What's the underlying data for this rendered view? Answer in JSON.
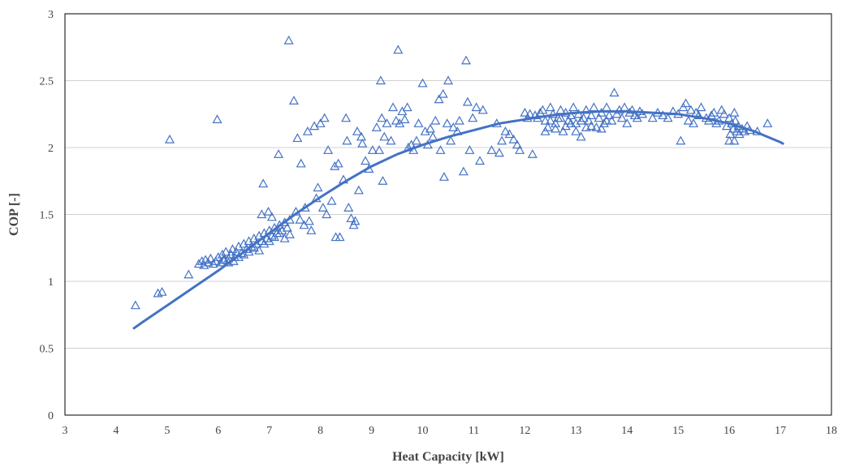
{
  "chart_data": {
    "type": "scatter",
    "title": "",
    "xlabel": "Heat Capacity [kW]",
    "ylabel": "COP [-]",
    "xlim": [
      3,
      18
    ],
    "ylim": [
      0,
      3
    ],
    "xticks": [
      3,
      4,
      5,
      6,
      7,
      8,
      9,
      10,
      11,
      12,
      13,
      14,
      15,
      16,
      17,
      18
    ],
    "yticks": [
      0,
      0.5,
      1,
      1.5,
      2,
      2.5,
      3
    ],
    "grid": "horizontal",
    "legend": "none",
    "marker": "triangle-open",
    "color": "#4472c4",
    "series": [
      {
        "points": [
          [
            4.38,
            0.82
          ],
          [
            4.82,
            0.91
          ],
          [
            4.9,
            0.92
          ],
          [
            5.05,
            2.06
          ],
          [
            5.42,
            1.05
          ],
          [
            5.98,
            2.21
          ],
          [
            5.62,
            1.13
          ],
          [
            5.68,
            1.15
          ],
          [
            5.72,
            1.12
          ],
          [
            5.75,
            1.16
          ],
          [
            5.8,
            1.14
          ],
          [
            5.85,
            1.17
          ],
          [
            5.9,
            1.13
          ],
          [
            5.95,
            1.15
          ],
          [
            6.0,
            1.18
          ],
          [
            6.05,
            1.14
          ],
          [
            6.08,
            1.2
          ],
          [
            6.12,
            1.16
          ],
          [
            6.15,
            1.22
          ],
          [
            6.2,
            1.17
          ],
          [
            6.25,
            1.2
          ],
          [
            6.28,
            1.24
          ],
          [
            6.32,
            1.18
          ],
          [
            6.35,
            1.22
          ],
          [
            6.4,
            1.26
          ],
          [
            6.45,
            1.21
          ],
          [
            6.5,
            1.28
          ],
          [
            6.55,
            1.24
          ],
          [
            6.6,
            1.3
          ],
          [
            6.65,
            1.26
          ],
          [
            6.7,
            1.32
          ],
          [
            6.75,
            1.28
          ],
          [
            6.8,
            1.34
          ],
          [
            6.85,
            1.3
          ],
          [
            6.9,
            1.36
          ],
          [
            6.95,
            1.32
          ],
          [
            7.0,
            1.38
          ],
          [
            7.05,
            1.34
          ],
          [
            7.1,
            1.4
          ],
          [
            7.15,
            1.36
          ],
          [
            7.2,
            1.42
          ],
          [
            7.25,
            1.38
          ],
          [
            7.3,
            1.44
          ],
          [
            7.35,
            1.4
          ],
          [
            7.4,
            1.46
          ],
          [
            6.6,
            1.22
          ],
          [
            6.7,
            1.25
          ],
          [
            6.8,
            1.23
          ],
          [
            6.9,
            1.28
          ],
          [
            7.0,
            1.3
          ],
          [
            7.1,
            1.33
          ],
          [
            7.2,
            1.36
          ],
          [
            7.3,
            1.32
          ],
          [
            7.4,
            1.35
          ],
          [
            6.3,
            1.15
          ],
          [
            6.4,
            1.18
          ],
          [
            6.5,
            1.2
          ],
          [
            6.2,
            1.14
          ],
          [
            6.1,
            1.16
          ],
          [
            6.88,
            1.73
          ],
          [
            6.85,
            1.5
          ],
          [
            6.98,
            1.52
          ],
          [
            7.05,
            1.48
          ],
          [
            7.18,
            1.95
          ],
          [
            7.38,
            2.8
          ],
          [
            7.48,
            2.35
          ],
          [
            7.52,
            1.52
          ],
          [
            7.55,
            2.07
          ],
          [
            7.6,
            1.46
          ],
          [
            7.62,
            1.88
          ],
          [
            7.68,
            1.42
          ],
          [
            7.7,
            1.55
          ],
          [
            7.75,
            2.12
          ],
          [
            7.78,
            1.45
          ],
          [
            7.82,
            1.38
          ],
          [
            7.88,
            2.16
          ],
          [
            7.92,
            1.62
          ],
          [
            7.95,
            1.7
          ],
          [
            8.0,
            2.18
          ],
          [
            8.05,
            1.55
          ],
          [
            8.08,
            2.22
          ],
          [
            8.12,
            1.5
          ],
          [
            8.15,
            1.98
          ],
          [
            8.22,
            1.6
          ],
          [
            8.28,
            1.86
          ],
          [
            8.3,
            1.33
          ],
          [
            8.35,
            1.88
          ],
          [
            8.38,
            1.33
          ],
          [
            8.45,
            1.76
          ],
          [
            8.5,
            2.22
          ],
          [
            8.52,
            2.05
          ],
          [
            8.55,
            1.55
          ],
          [
            8.6,
            1.47
          ],
          [
            8.65,
            1.42
          ],
          [
            8.68,
            1.45
          ],
          [
            8.72,
            2.12
          ],
          [
            8.75,
            1.68
          ],
          [
            8.8,
            2.08
          ],
          [
            8.82,
            2.03
          ],
          [
            8.88,
            1.9
          ],
          [
            8.95,
            1.84
          ],
          [
            9.02,
            1.98
          ],
          [
            9.1,
            2.15
          ],
          [
            9.15,
            1.98
          ],
          [
            9.18,
            2.5
          ],
          [
            9.2,
            2.22
          ],
          [
            9.22,
            1.75
          ],
          [
            9.25,
            2.08
          ],
          [
            9.3,
            2.18
          ],
          [
            9.38,
            2.05
          ],
          [
            9.42,
            2.3
          ],
          [
            9.48,
            2.2
          ],
          [
            9.52,
            2.73
          ],
          [
            9.55,
            2.18
          ],
          [
            9.6,
            2.27
          ],
          [
            9.65,
            2.21
          ],
          [
            9.7,
            2.3
          ],
          [
            9.72,
            2.0
          ],
          [
            9.78,
            2.02
          ],
          [
            9.82,
            1.98
          ],
          [
            9.88,
            2.05
          ],
          [
            9.92,
            2.18
          ],
          [
            10.0,
            2.48
          ],
          [
            10.05,
            2.12
          ],
          [
            10.1,
            2.02
          ],
          [
            10.15,
            2.14
          ],
          [
            10.2,
            2.08
          ],
          [
            10.25,
            2.2
          ],
          [
            10.32,
            2.36
          ],
          [
            10.35,
            1.98
          ],
          [
            10.4,
            2.4
          ],
          [
            10.42,
            1.78
          ],
          [
            10.48,
            2.18
          ],
          [
            10.5,
            2.5
          ],
          [
            10.55,
            2.05
          ],
          [
            10.6,
            2.15
          ],
          [
            10.68,
            2.12
          ],
          [
            10.72,
            2.2
          ],
          [
            10.8,
            1.82
          ],
          [
            10.85,
            2.65
          ],
          [
            10.88,
            2.34
          ],
          [
            10.92,
            1.98
          ],
          [
            10.98,
            2.22
          ],
          [
            11.05,
            2.3
          ],
          [
            11.12,
            1.9
          ],
          [
            11.18,
            2.28
          ],
          [
            11.35,
            1.98
          ],
          [
            11.45,
            2.18
          ],
          [
            11.5,
            1.96
          ],
          [
            11.55,
            2.05
          ],
          [
            11.62,
            2.12
          ],
          [
            11.7,
            2.1
          ],
          [
            11.78,
            2.06
          ],
          [
            11.85,
            2.02
          ],
          [
            11.9,
            1.98
          ],
          [
            12.0,
            2.26
          ],
          [
            12.05,
            2.22
          ],
          [
            12.1,
            2.25
          ],
          [
            12.15,
            1.95
          ],
          [
            12.2,
            2.24
          ],
          [
            12.25,
            2.22
          ],
          [
            12.3,
            2.26
          ],
          [
            12.35,
            2.28
          ],
          [
            12.4,
            2.2
          ],
          [
            12.45,
            2.15
          ],
          [
            12.5,
            2.3
          ],
          [
            12.55,
            2.25
          ],
          [
            12.6,
            2.18
          ],
          [
            12.65,
            2.22
          ],
          [
            12.7,
            2.28
          ],
          [
            12.75,
            2.12
          ],
          [
            12.8,
            2.26
          ],
          [
            12.85,
            2.2
          ],
          [
            12.9,
            2.24
          ],
          [
            12.95,
            2.3
          ],
          [
            13.0,
            2.18
          ],
          [
            13.05,
            2.25
          ],
          [
            13.1,
            2.08
          ],
          [
            13.15,
            2.22
          ],
          [
            13.2,
            2.28
          ],
          [
            13.25,
            2.2
          ],
          [
            13.3,
            2.24
          ],
          [
            13.35,
            2.3
          ],
          [
            13.4,
            2.15
          ],
          [
            13.45,
            2.22
          ],
          [
            13.5,
            2.26
          ],
          [
            13.55,
            2.18
          ],
          [
            13.6,
            2.3
          ],
          [
            13.65,
            2.24
          ],
          [
            13.7,
            2.2
          ],
          [
            13.75,
            2.41
          ],
          [
            13.8,
            2.25
          ],
          [
            13.85,
            2.28
          ],
          [
            13.9,
            2.22
          ],
          [
            13.95,
            2.3
          ],
          [
            14.0,
            2.18
          ],
          [
            14.05,
            2.26
          ],
          [
            14.1,
            2.28
          ],
          [
            14.15,
            2.24
          ],
          [
            14.2,
            2.22
          ],
          [
            14.25,
            2.27
          ],
          [
            14.3,
            2.25
          ],
          [
            12.4,
            2.12
          ],
          [
            12.6,
            2.14
          ],
          [
            12.8,
            2.16
          ],
          [
            13.0,
            2.12
          ],
          [
            13.2,
            2.15
          ],
          [
            13.5,
            2.14
          ],
          [
            12.5,
            2.2
          ],
          [
            12.7,
            2.22
          ],
          [
            12.9,
            2.18
          ],
          [
            13.1,
            2.2
          ],
          [
            13.3,
            2.16
          ],
          [
            13.6,
            2.2
          ],
          [
            14.5,
            2.22
          ],
          [
            14.6,
            2.26
          ],
          [
            14.7,
            2.24
          ],
          [
            14.8,
            2.22
          ],
          [
            14.9,
            2.27
          ],
          [
            15.0,
            2.25
          ],
          [
            15.05,
            2.05
          ],
          [
            15.1,
            2.3
          ],
          [
            15.15,
            2.33
          ],
          [
            15.2,
            2.2
          ],
          [
            15.25,
            2.28
          ],
          [
            15.3,
            2.18
          ],
          [
            15.35,
            2.26
          ],
          [
            15.45,
            2.3
          ],
          [
            15.55,
            2.22
          ],
          [
            15.65,
            2.24
          ],
          [
            15.7,
            2.26
          ],
          [
            15.75,
            2.18
          ],
          [
            15.8,
            2.2
          ],
          [
            15.85,
            2.28
          ],
          [
            15.9,
            2.25
          ],
          [
            15.95,
            2.16
          ],
          [
            16.0,
            2.22
          ],
          [
            16.02,
            2.1
          ],
          [
            16.05,
            2.18
          ],
          [
            16.08,
            2.14
          ],
          [
            16.1,
            2.05
          ],
          [
            16.12,
            2.2
          ],
          [
            16.15,
            2.12
          ],
          [
            16.18,
            2.16
          ],
          [
            16.2,
            2.1
          ],
          [
            16.25,
            2.14
          ],
          [
            16.3,
            2.12
          ],
          [
            16.35,
            2.16
          ],
          [
            16.4,
            2.13
          ],
          [
            16.55,
            2.12
          ],
          [
            16.75,
            2.18
          ],
          [
            15.4,
            2.24
          ],
          [
            15.6,
            2.2
          ],
          [
            16.0,
            2.05
          ],
          [
            16.1,
            2.26
          ]
        ]
      },
      {
        "type": "line",
        "role": "trendline",
        "x": [
          4.35,
          4.5,
          5.0,
          5.5,
          6.0,
          6.5,
          7.0,
          7.5,
          8.0,
          8.5,
          9.0,
          9.5,
          10.0,
          10.5,
          11.0,
          11.5,
          12.0,
          12.5,
          13.0,
          13.5,
          14.0,
          14.5,
          15.0,
          15.5,
          16.0,
          16.5,
          17.0,
          17.05
        ],
        "y": [
          0.65,
          0.69,
          0.82,
          0.95,
          1.08,
          1.22,
          1.36,
          1.5,
          1.63,
          1.75,
          1.86,
          1.95,
          2.02,
          2.08,
          2.13,
          2.18,
          2.21,
          2.24,
          2.26,
          2.27,
          2.27,
          2.26,
          2.25,
          2.22,
          2.18,
          2.12,
          2.04,
          2.03
        ]
      }
    ]
  }
}
